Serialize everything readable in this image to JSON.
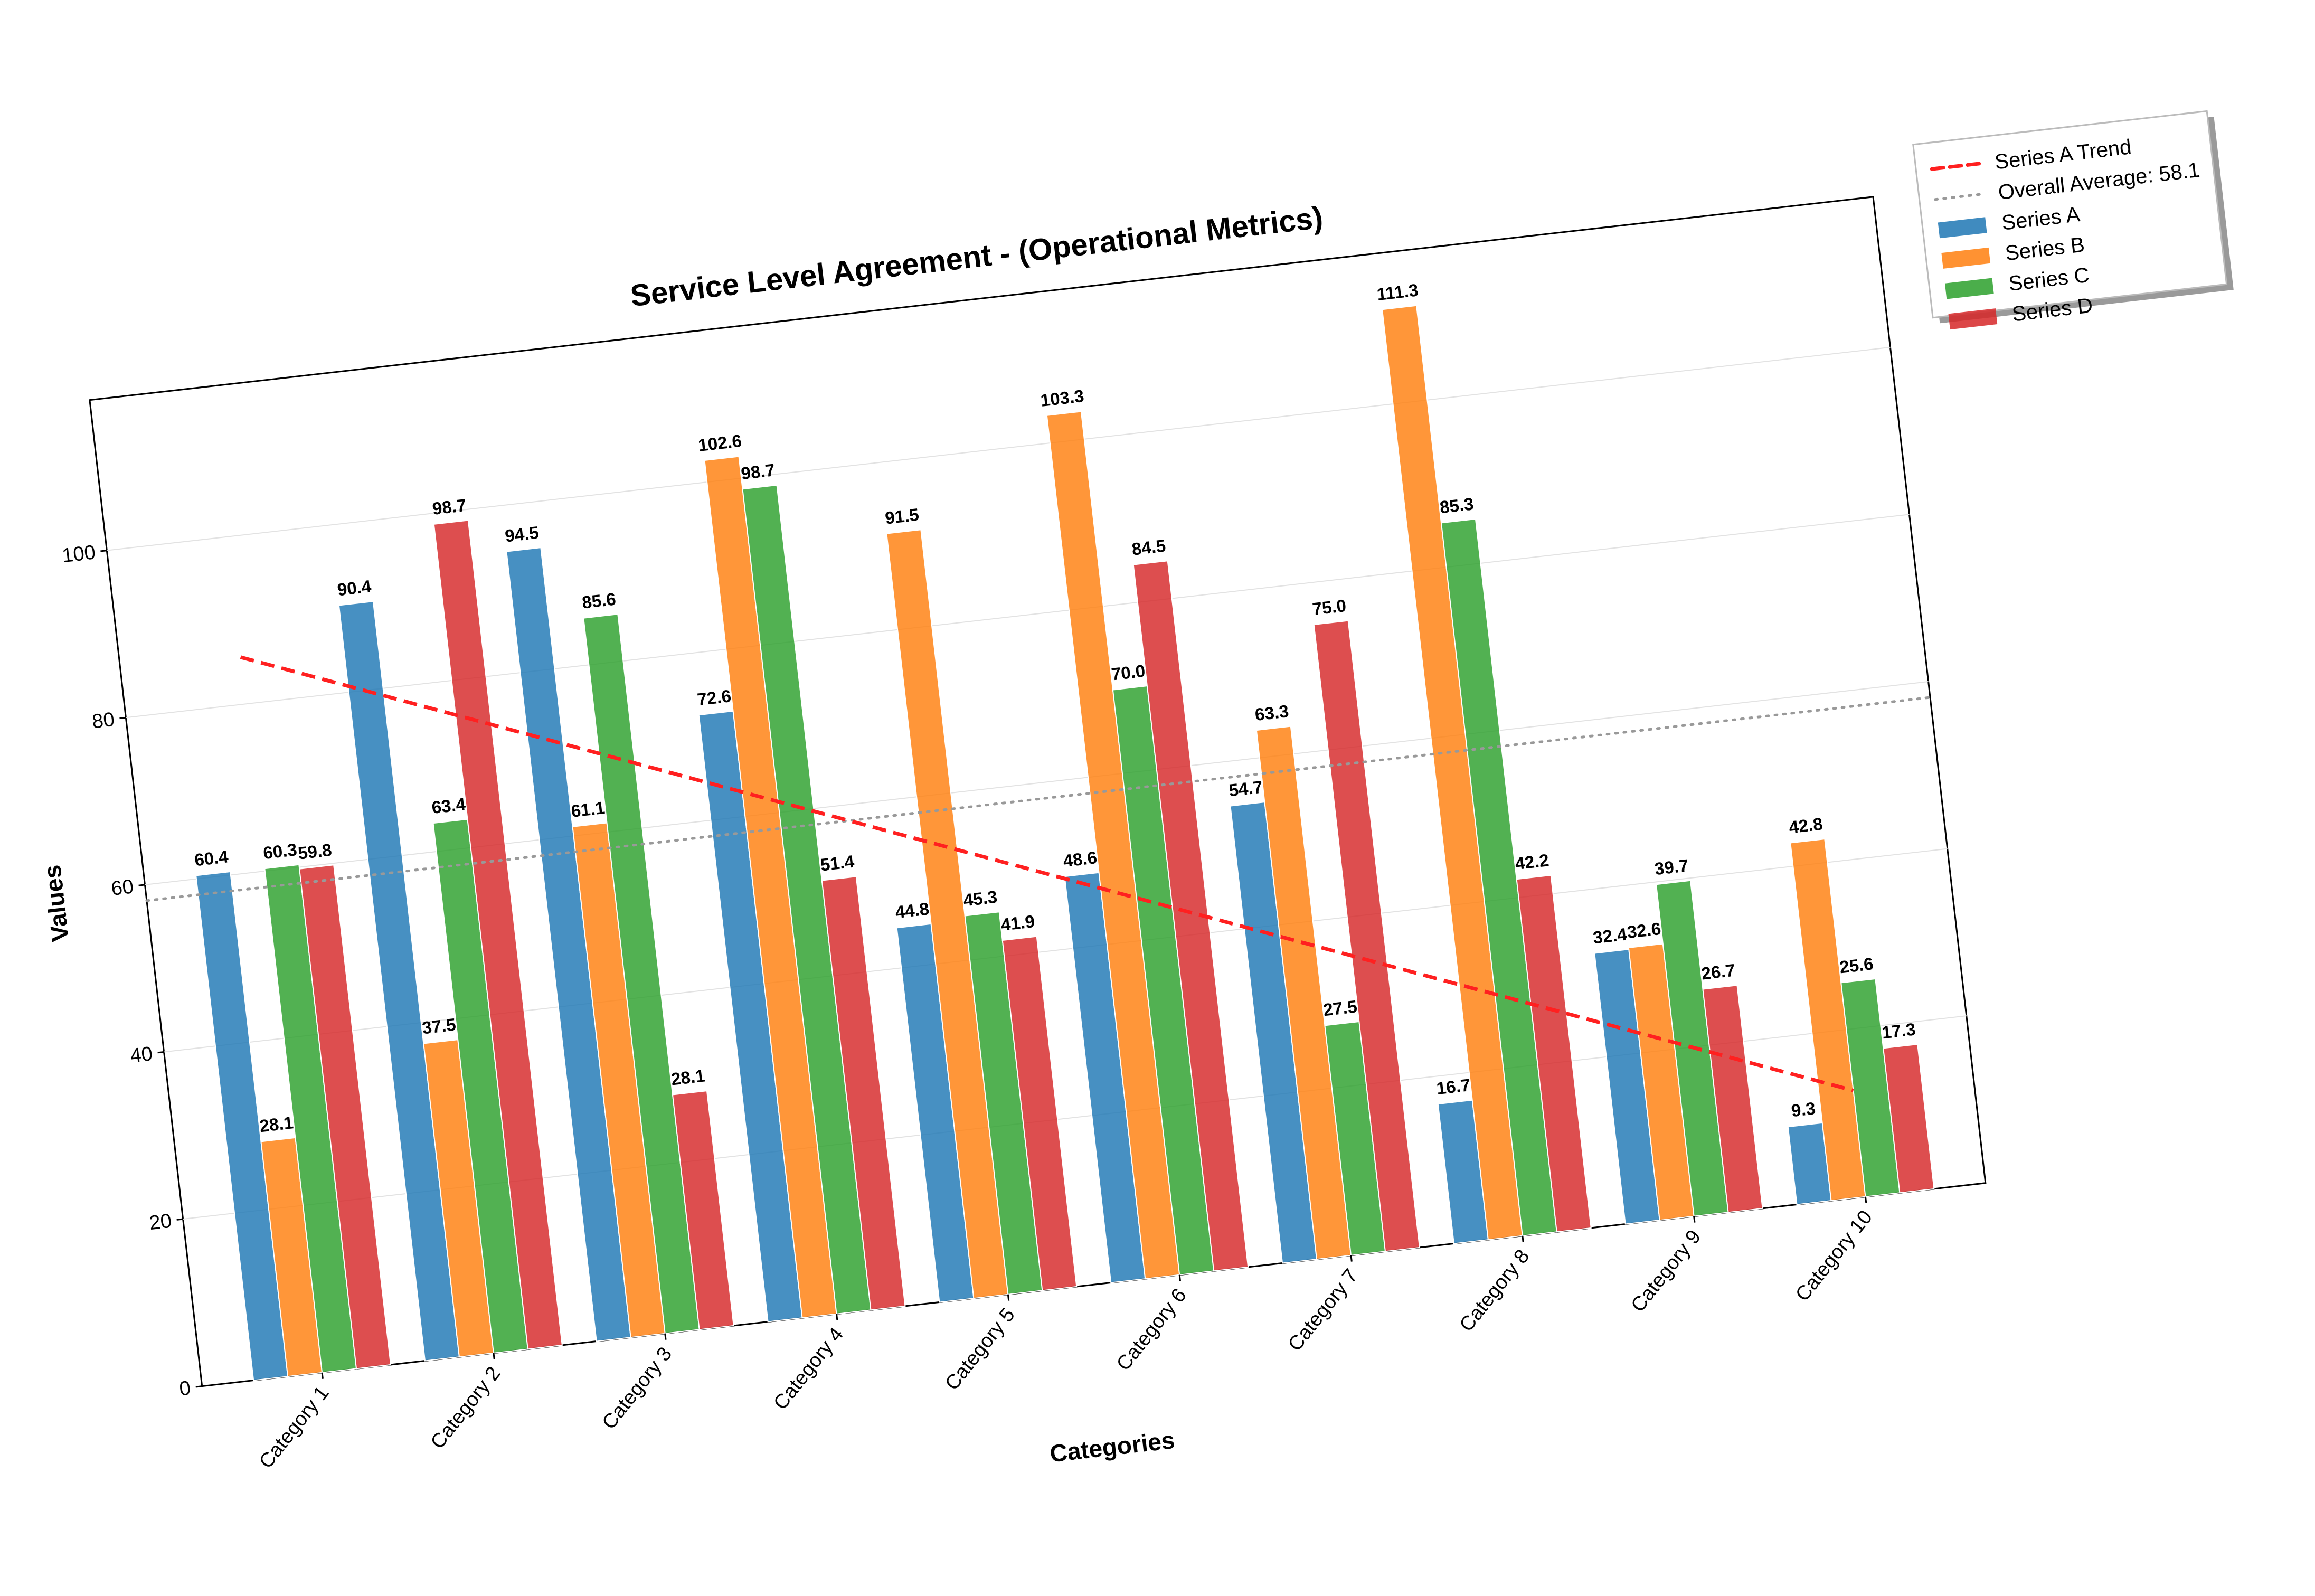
{
  "chart_data": {
    "type": "bar",
    "title": "Service Level Agreement - (Operational Metrics)",
    "xlabel": "Categories",
    "ylabel": "Values",
    "categories": [
      "Category 1",
      "Category 2",
      "Category 3",
      "Category 4",
      "Category 5",
      "Category 6",
      "Category 7",
      "Category 8",
      "Category 9",
      "Category 10"
    ],
    "ylim": [
      0,
      118
    ],
    "yticks": [
      0,
      20,
      40,
      60,
      80,
      100
    ],
    "grid": "y",
    "legend_position": "upper-right-outside",
    "series": [
      {
        "name": "Series A",
        "color": "#1f77b4",
        "values": [
          60.4,
          90.4,
          94.5,
          72.6,
          44.8,
          48.6,
          54.7,
          16.7,
          32.4,
          9.3
        ]
      },
      {
        "name": "Series B",
        "color": "#ff7f0e",
        "values": [
          28.1,
          37.5,
          61.1,
          102.6,
          91.5,
          103.3,
          63.3,
          111.3,
          32.6,
          42.8
        ]
      },
      {
        "name": "Series C",
        "color": "#2ca02c",
        "values": [
          60.3,
          63.4,
          85.6,
          98.7,
          45.3,
          70.0,
          27.5,
          85.3,
          39.7,
          25.6
        ]
      },
      {
        "name": "Series D",
        "color": "#d62728",
        "values": [
          59.8,
          98.7,
          28.1,
          51.4,
          41.9,
          84.5,
          75.0,
          42.2,
          26.7,
          17.3
        ]
      }
    ],
    "trend": {
      "name": "Series A Trend",
      "color": "#ff2020",
      "start": 85.6,
      "end": 12.7
    },
    "average": {
      "name": "Overall Average: 58.1",
      "value": 58.1,
      "color": "#999999"
    }
  }
}
